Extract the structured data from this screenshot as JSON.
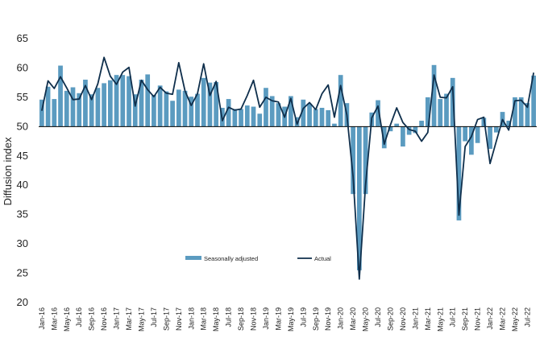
{
  "chart_data": {
    "type": "bar",
    "ylabel": "Diffusion index",
    "xlabel": "",
    "ylim": [
      20,
      65
    ],
    "yticks": [
      20,
      25,
      30,
      35,
      40,
      45,
      50,
      55,
      60,
      65
    ],
    "baseline": 50,
    "legend_position": "bottom-center",
    "colors": {
      "bar": "#5b9bc0",
      "line": "#0f2f4c",
      "baseline": "#000000"
    },
    "categories": [
      "Jan-16",
      "Feb-16",
      "Mar-16",
      "Apr-16",
      "May-16",
      "Jun-16",
      "Jul-16",
      "Aug-16",
      "Sep-16",
      "Oct-16",
      "Nov-16",
      "Dec-16",
      "Jan-17",
      "Feb-17",
      "Mar-17",
      "Apr-17",
      "May-17",
      "Jun-17",
      "Jul-17",
      "Aug-17",
      "Sep-17",
      "Oct-17",
      "Nov-17",
      "Dec-17",
      "Jan-18",
      "Feb-18",
      "Mar-18",
      "Apr-18",
      "May-18",
      "Jun-18",
      "Jul-18",
      "Aug-18",
      "Sep-18",
      "Oct-18",
      "Nov-18",
      "Dec-18",
      "Jan-19",
      "Feb-19",
      "Mar-19",
      "Apr-19",
      "May-19",
      "Jun-19",
      "Jul-19",
      "Aug-19",
      "Sep-19",
      "Oct-19",
      "Nov-19",
      "Dec-19",
      "Jan-20",
      "Feb-20",
      "Mar-20",
      "Apr-20",
      "May-20",
      "Jun-20",
      "Jul-20",
      "Aug-20",
      "Sep-20",
      "Oct-20",
      "Nov-20",
      "Dec-20",
      "Jan-21",
      "Feb-21",
      "Mar-21",
      "Apr-21",
      "May-21",
      "Jun-21",
      "Jul-21",
      "Aug-21",
      "Sep-21",
      "Oct-21",
      "Nov-21",
      "Dec-21",
      "Jan-22",
      "Feb-22",
      "Mar-22",
      "Apr-22",
      "May-22",
      "Jun-22",
      "Jul-22",
      "Aug-22"
    ],
    "tick_labels": [
      "Jan-16",
      "Mar-16",
      "May-16",
      "Jul-16",
      "Sep-16",
      "Nov-16",
      "Jan-17",
      "Mar-17",
      "May-17",
      "Jul-17",
      "Sep-17",
      "Nov-17",
      "Jan-18",
      "Mar-18",
      "May-18",
      "Jul-18",
      "Sep-18",
      "Nov-18",
      "Jan-19",
      "Mar-19",
      "May-19",
      "Jul-19",
      "Sep-19",
      "Nov-19",
      "Jan-20",
      "Mar-20",
      "May-20",
      "Jul-20",
      "Sep-20",
      "Nov-20",
      "Jan-21",
      "Mar-21",
      "May-21",
      "Jul-21",
      "Sep-21",
      "Nov-21",
      "Jan-22",
      "Mar-22",
      "May-22",
      "Jul-22"
    ],
    "series": [
      {
        "name": "Seasonally adjusted",
        "type": "bar",
        "values": [
          54.6,
          56.8,
          54.7,
          60.4,
          56.1,
          56.7,
          55.7,
          58.0,
          55.5,
          56.6,
          57.4,
          57.9,
          58.8,
          58.8,
          58.6,
          55.5,
          58.0,
          58.9,
          55.4,
          57.0,
          56.0,
          54.4,
          56.3,
          56.1,
          55.1,
          55.6,
          58.3,
          57.5,
          57.6,
          53.2,
          54.7,
          53.0,
          53.0,
          53.6,
          53.4,
          52.2,
          56.6,
          55.2,
          54.0,
          53.4,
          55.2,
          51.6,
          54.6,
          53.9,
          53.0,
          53.2,
          52.8,
          50.5,
          58.8,
          54.0,
          38.5,
          25.5,
          38.5,
          52.4,
          54.5,
          46.3,
          49.2,
          50.5,
          46.6,
          48.6,
          48.9,
          51.0,
          55.0,
          60.5,
          54.7,
          55.6,
          58.3,
          34.0,
          47.5,
          45.2,
          47.2,
          51.5,
          46.2,
          49.0,
          52.5,
          51.0,
          55.0,
          55.0,
          54.0,
          58.7
        ]
      },
      {
        "name": "Actual",
        "type": "line",
        "values": [
          52.7,
          57.8,
          56.5,
          58.5,
          56.6,
          54.6,
          54.7,
          57.0,
          54.6,
          57.3,
          61.8,
          58.6,
          57.2,
          59.3,
          60.1,
          53.5,
          57.9,
          56.3,
          55.1,
          56.7,
          55.7,
          55.5,
          60.9,
          56.1,
          53.6,
          55.6,
          60.7,
          55.3,
          57.7,
          51.0,
          53.3,
          52.8,
          53.0,
          55.3,
          57.9,
          53.3,
          55.0,
          54.4,
          54.2,
          51.6,
          54.8,
          50.4,
          53.1,
          54.1,
          52.9,
          55.6,
          57.1,
          51.6,
          57.0,
          52.0,
          41.5,
          24.0,
          40.0,
          51.5,
          53.5,
          47.0,
          50.3,
          53.2,
          50.7,
          49.5,
          49.2,
          47.5,
          49.0,
          58.8,
          55.0,
          54.9,
          56.8,
          34.9,
          46.6,
          48.3,
          51.2,
          51.6,
          43.7,
          47.5,
          51.2,
          49.4,
          54.4,
          54.5,
          53.3,
          59.2
        ]
      }
    ]
  }
}
